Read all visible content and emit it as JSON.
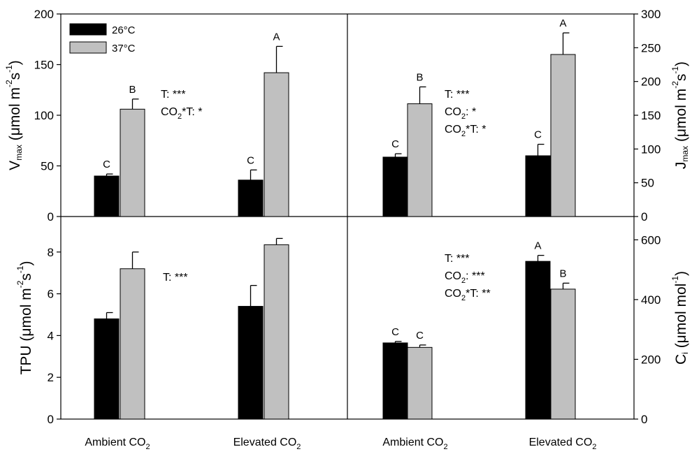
{
  "chart_data": [
    {
      "id": "vmax",
      "type": "bar",
      "position": "top-left",
      "y_axis_side": "left",
      "ylabel_base": "V",
      "ylabel_sub": "max",
      "ylabel_units": " (μmol m",
      "ylabel_sup1": "-2",
      "ylabel_mid": "s",
      "ylabel_sup2": "-1",
      "ylabel_end": ")",
      "ylim": [
        0,
        200
      ],
      "yticks": [
        0,
        50,
        100,
        150,
        200
      ],
      "categories": [
        "Ambient CO2",
        "Elevated CO2"
      ],
      "series": [
        {
          "name": "26°C",
          "color": "#000000",
          "values": [
            40,
            36
          ],
          "errors": [
            2,
            10
          ]
        },
        {
          "name": "37°C",
          "color": "#c0c0c0",
          "values": [
            106,
            142
          ],
          "errors": [
            10,
            26
          ]
        }
      ],
      "letters": [
        [
          "C",
          "C"
        ],
        [
          "B",
          "A"
        ]
      ],
      "annotations": [
        {
          "parts": [
            {
              "t": "T: ***"
            }
          ]
        },
        {
          "parts": [
            {
              "t": "CO"
            },
            {
              "t": "2",
              "sub": true
            },
            {
              "t": "*T: *"
            }
          ]
        }
      ]
    },
    {
      "id": "jmax",
      "type": "bar",
      "position": "top-right",
      "y_axis_side": "right",
      "ylabel_base": "J",
      "ylabel_sub": "max",
      "ylabel_units": " (μmol m",
      "ylabel_sup1": "-2",
      "ylabel_mid": "s",
      "ylabel_sup2": "-1",
      "ylabel_end": ")",
      "ylim": [
        0,
        300
      ],
      "yticks": [
        0,
        50,
        100,
        150,
        200,
        250,
        300
      ],
      "categories": [
        "Ambient CO2",
        "Elevated CO2"
      ],
      "series": [
        {
          "name": "26°C",
          "color": "#000000",
          "values": [
            88,
            90
          ],
          "errors": [
            5,
            17
          ]
        },
        {
          "name": "37°C",
          "color": "#c0c0c0",
          "values": [
            167,
            240
          ],
          "errors": [
            25,
            32
          ]
        }
      ],
      "letters": [
        [
          "C",
          "C"
        ],
        [
          "B",
          "A"
        ]
      ],
      "annotations": [
        {
          "parts": [
            {
              "t": "T: ***"
            }
          ]
        },
        {
          "parts": [
            {
              "t": "CO"
            },
            {
              "t": "2",
              "sub": true
            },
            {
              "t": ": *"
            }
          ]
        },
        {
          "parts": [
            {
              "t": "CO"
            },
            {
              "t": "2",
              "sub": true
            },
            {
              "t": "*T: *"
            }
          ]
        }
      ]
    },
    {
      "id": "tpu",
      "type": "bar",
      "position": "bottom-left",
      "y_axis_side": "left",
      "ylabel_base": "TPU",
      "ylabel_sub": "",
      "ylabel_units": " (μmol m",
      "ylabel_sup1": "-2",
      "ylabel_mid": "s",
      "ylabel_sup2": "-1",
      "ylabel_end": ")",
      "ylim": [
        0,
        9.7
      ],
      "yticks": [
        0,
        2,
        4,
        6,
        8
      ],
      "categories": [
        "Ambient CO2",
        "Elevated CO2"
      ],
      "series": [
        {
          "name": "26°C",
          "color": "#000000",
          "values": [
            4.8,
            5.4
          ],
          "errors": [
            0.3,
            1.0
          ]
        },
        {
          "name": "37°C",
          "color": "#c0c0c0",
          "values": [
            7.2,
            8.35
          ],
          "errors": [
            0.8,
            0.3
          ]
        }
      ],
      "letters": [
        [
          "",
          ""
        ],
        [
          "",
          ""
        ]
      ],
      "annotations": [
        {
          "parts": [
            {
              "t": "T: ***"
            }
          ]
        }
      ]
    },
    {
      "id": "ci",
      "type": "bar",
      "position": "bottom-right",
      "y_axis_side": "right",
      "ylabel_base": "C",
      "ylabel_sub": "i",
      "ylabel_units": " (μmol mol",
      "ylabel_sup1": "-1",
      "ylabel_mid": "",
      "ylabel_sup2": "",
      "ylabel_end": ")",
      "ylim": [
        0,
        678
      ],
      "yticks": [
        0,
        200,
        400,
        600
      ],
      "categories": [
        "Ambient CO2",
        "Elevated CO2"
      ],
      "series": [
        {
          "name": "26°C",
          "color": "#000000",
          "values": [
            255,
            528
          ],
          "errors": [
            5,
            20
          ]
        },
        {
          "name": "37°C",
          "color": "#c0c0c0",
          "values": [
            240,
            435
          ],
          "errors": [
            8,
            20
          ]
        }
      ],
      "letters": [
        [
          "C",
          "A"
        ],
        [
          "C",
          "B"
        ]
      ],
      "annotations": [
        {
          "parts": [
            {
              "t": "T: ***"
            }
          ]
        },
        {
          "parts": [
            {
              "t": "CO"
            },
            {
              "t": "2",
              "sub": true
            },
            {
              "t": ": ***"
            }
          ]
        },
        {
          "parts": [
            {
              "t": "CO"
            },
            {
              "t": "2",
              "sub": true
            },
            {
              "t": "*T: **"
            }
          ]
        }
      ]
    }
  ],
  "legend": {
    "placement": "top-left",
    "items": [
      {
        "label": "26°C",
        "color": "#000000"
      },
      {
        "label": "37°C",
        "color": "#c0c0c0"
      }
    ]
  },
  "x_category_labels": [
    {
      "base": "Ambient CO",
      "sub": "2"
    },
    {
      "base": "Elevated CO",
      "sub": "2"
    },
    {
      "base": "Ambient CO",
      "sub": "2"
    },
    {
      "base": "Elevated CO",
      "sub": "2"
    }
  ]
}
